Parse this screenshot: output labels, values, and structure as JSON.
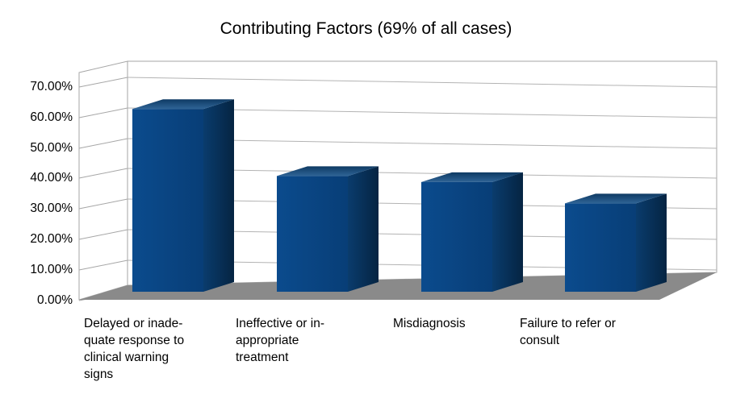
{
  "chart_data": {
    "type": "bar",
    "style": "3d-column",
    "title": "Contributing Factors (69% of all cases)",
    "categories": [
      "Delayed or inadequate response to clinical warning signs",
      "Ineffective or inappropriate treatment",
      "Misdiagnosis",
      "Failure to refer or consult"
    ],
    "category_display": [
      "Delayed or inade-\nquate response to\nclinical warning\nsigns",
      "Ineffective or in-\nappropriate\ntreatment",
      "Misdiagnosis",
      "Failure to refer or\nconsult"
    ],
    "values": [
      60,
      38,
      36,
      29
    ],
    "unit": "%",
    "xlabel": "",
    "ylabel": "",
    "ylim": [
      0,
      70
    ],
    "ytick_step": 10,
    "ytick_labels": [
      "70.00%",
      "60.00%",
      "50.00%",
      "40.00%",
      "30.00%",
      "20.00%",
      "10.00%",
      "0.00%"
    ],
    "grid": true,
    "legend": "none",
    "colors": {
      "bar_front": "#0B4B8D",
      "bar_front_shade": "#083E77",
      "bar_top_light": "#2F6496",
      "bar_top_dark": "#0E3A63",
      "bar_side": "#0A3C6D",
      "bar_side_dark": "#052442",
      "floor": "#8A8A8A",
      "gridline": "#B3B3B3",
      "wall_edge": "#A6A6A6",
      "background": "#FFFFFF",
      "text": "#000000"
    }
  }
}
